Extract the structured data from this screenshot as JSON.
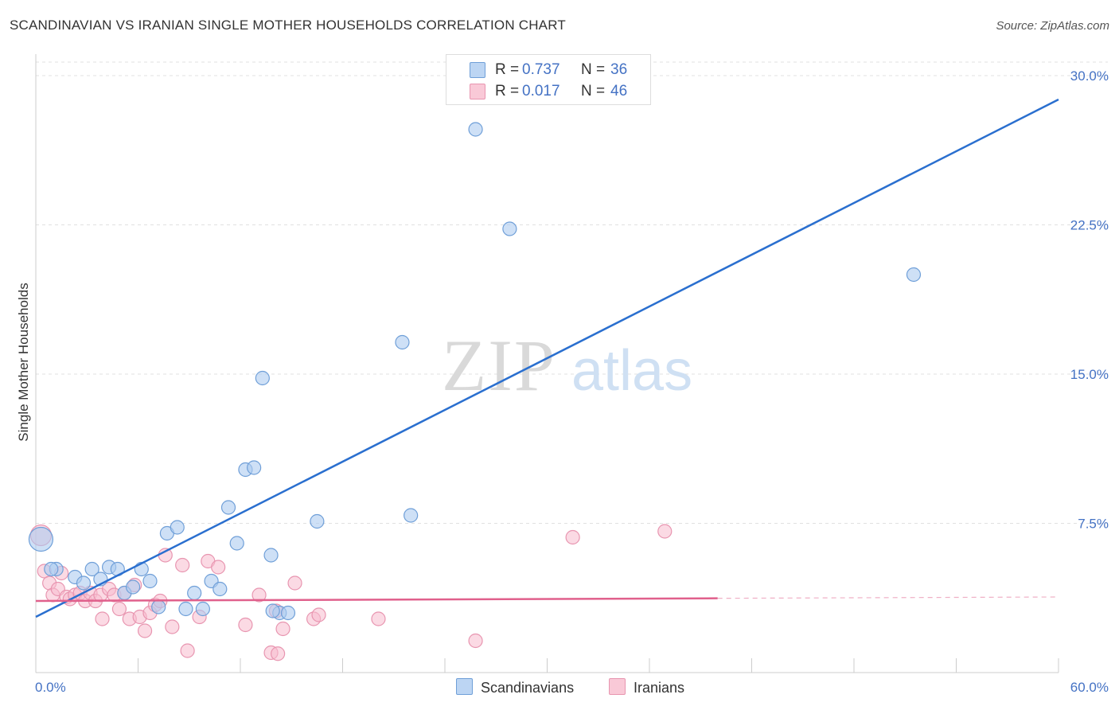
{
  "title": "SCANDINAVIAN VS IRANIAN SINGLE MOTHER HOUSEHOLDS CORRELATION CHART",
  "source": "Source: ZipAtlas.com",
  "watermark": {
    "zip": "ZIP",
    "atlas": "atlas"
  },
  "legend": {
    "rows": [
      {
        "r_label": "R =",
        "r_value": "0.737",
        "n_label": "N =",
        "n_value": "36"
      },
      {
        "r_label": "R =",
        "r_value": "0.017",
        "n_label": "N =",
        "n_value": "46"
      }
    ]
  },
  "bottom_legend": {
    "scandinavians": "Scandinavians",
    "iranians": "Iranians"
  },
  "colors": {
    "blue_fill": "#aecbf0",
    "blue_stroke": "#6f9fd8",
    "blue_line": "#2a6fcf",
    "pink_fill": "#f7bccd",
    "pink_stroke": "#e895b0",
    "pink_line": "#e0608c",
    "tick_text": "#4472c4",
    "grid": "#e0e0e0"
  },
  "chart_data": {
    "type": "scatter",
    "title": "SCANDINAVIAN VS IRANIAN SINGLE MOTHER HOUSEHOLDS CORRELATION CHART",
    "xlabel": "",
    "ylabel": "Single Mother Households",
    "xlim": [
      0,
      60
    ],
    "ylim": [
      0,
      30
    ],
    "x_tick_labels": [
      "0.0%",
      "60.0%"
    ],
    "y_ticks": [
      7.5,
      15.0,
      22.5,
      30.0
    ],
    "y_tick_labels": [
      "7.5%",
      "15.0%",
      "22.5%",
      "30.0%"
    ],
    "grid": true,
    "legend_position": "top-center",
    "series": [
      {
        "name": "Scandinavians",
        "points": [
          [
            0.3,
            6.7
          ],
          [
            1.2,
            5.2
          ],
          [
            2.3,
            4.8
          ],
          [
            2.8,
            4.5
          ],
          [
            3.3,
            5.2
          ],
          [
            3.8,
            4.7
          ],
          [
            4.3,
            5.3
          ],
          [
            4.8,
            5.2
          ],
          [
            5.2,
            4.0
          ],
          [
            5.7,
            4.3
          ],
          [
            6.2,
            5.2
          ],
          [
            6.7,
            4.6
          ],
          [
            7.2,
            3.3
          ],
          [
            7.7,
            7.0
          ],
          [
            8.3,
            7.3
          ],
          [
            8.8,
            3.2
          ],
          [
            9.3,
            4.0
          ],
          [
            9.8,
            3.2
          ],
          [
            10.3,
            4.6
          ],
          [
            10.8,
            4.2
          ],
          [
            11.3,
            8.3
          ],
          [
            11.8,
            6.5
          ],
          [
            12.3,
            10.2
          ],
          [
            12.8,
            10.3
          ],
          [
            13.3,
            14.8
          ],
          [
            13.8,
            5.9
          ],
          [
            14.3,
            3.0
          ],
          [
            14.8,
            3.0
          ],
          [
            16.5,
            7.6
          ],
          [
            21.5,
            16.6
          ],
          [
            22.0,
            7.9
          ],
          [
            25.8,
            27.3
          ],
          [
            27.8,
            22.3
          ],
          [
            51.5,
            20.0
          ],
          [
            13.9,
            3.1
          ],
          [
            0.9,
            5.2
          ]
        ],
        "trend": {
          "x": [
            0,
            60
          ],
          "y": [
            2.8,
            28.8
          ]
        }
      },
      {
        "name": "Iranians",
        "points": [
          [
            0.3,
            6.9
          ],
          [
            0.5,
            5.1
          ],
          [
            0.8,
            4.5
          ],
          [
            1.0,
            3.9
          ],
          [
            1.3,
            4.2
          ],
          [
            1.5,
            5.0
          ],
          [
            1.8,
            3.8
          ],
          [
            2.0,
            3.7
          ],
          [
            2.3,
            3.9
          ],
          [
            2.6,
            4.0
          ],
          [
            2.9,
            3.6
          ],
          [
            3.2,
            4.0
          ],
          [
            3.5,
            3.6
          ],
          [
            3.8,
            3.9
          ],
          [
            3.9,
            2.7
          ],
          [
            4.3,
            4.2
          ],
          [
            4.6,
            3.9
          ],
          [
            4.9,
            3.2
          ],
          [
            5.2,
            4.0
          ],
          [
            5.5,
            2.7
          ],
          [
            5.8,
            4.4
          ],
          [
            6.1,
            2.8
          ],
          [
            6.4,
            2.1
          ],
          [
            6.7,
            3.0
          ],
          [
            7.0,
            3.4
          ],
          [
            7.3,
            3.6
          ],
          [
            7.6,
            5.9
          ],
          [
            8.0,
            2.3
          ],
          [
            8.6,
            5.4
          ],
          [
            8.9,
            1.1
          ],
          [
            9.6,
            2.8
          ],
          [
            10.1,
            5.6
          ],
          [
            10.7,
            5.3
          ],
          [
            12.3,
            2.4
          ],
          [
            13.1,
            3.9
          ],
          [
            13.8,
            1.0
          ],
          [
            14.1,
            3.1
          ],
          [
            14.5,
            2.2
          ],
          [
            15.2,
            4.5
          ],
          [
            16.3,
            2.7
          ],
          [
            16.6,
            2.9
          ],
          [
            20.1,
            2.7
          ],
          [
            25.8,
            1.6
          ],
          [
            31.5,
            6.8
          ],
          [
            36.9,
            7.1
          ],
          [
            14.2,
            0.95
          ]
        ],
        "trend": {
          "x": [
            0,
            60
          ],
          "y": [
            3.6,
            3.8
          ]
        }
      }
    ]
  }
}
